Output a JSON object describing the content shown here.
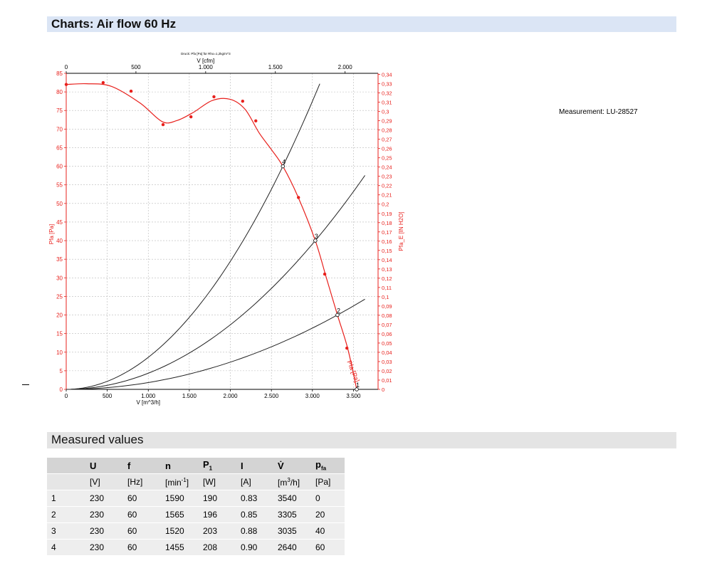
{
  "header": {
    "title": "Charts: Air flow 60 Hz"
  },
  "measurement": "Measurement: LU-28527",
  "chart_data": {
    "type": "line",
    "title": "",
    "subtitle": "Druck: Pfa [Pa] für Rho=1,2kg/m^3",
    "xlabel": "V [m^3/h]",
    "x2label": "V [cfm]",
    "ylabel": "Pfa [Pa]",
    "y2label": "Pfa_E [IN H2O]",
    "xlim": [
      0,
      3800
    ],
    "ylim": [
      0,
      85
    ],
    "x2lim": [
      0,
      2236.5
    ],
    "y2lim": [
      0,
      0.3412
    ],
    "x_ticks": [
      0,
      500,
      1000,
      1500,
      2000,
      2500,
      3000,
      3500
    ],
    "x_tick_labels": [
      "0",
      "500",
      "1.000",
      "1.500",
      "2.000",
      "2.500",
      "3.000",
      "3.500"
    ],
    "x2_ticks": [
      0,
      500,
      1000,
      1500,
      2000
    ],
    "x2_tick_labels": [
      "0",
      "500",
      "1.000",
      "1.500",
      "2.000"
    ],
    "y_ticks": [
      0,
      5,
      10,
      15,
      20,
      25,
      30,
      35,
      40,
      45,
      50,
      55,
      60,
      65,
      70,
      75,
      80,
      85
    ],
    "y2_ticks": [
      0,
      0.01,
      0.02,
      0.03,
      0.04,
      0.05,
      0.06,
      0.07,
      0.08,
      0.09,
      0.1,
      0.11,
      0.12,
      0.13,
      0.14,
      0.15,
      0.16,
      0.17,
      0.18,
      0.19,
      0.2,
      0.21,
      0.22,
      0.23,
      0.24,
      0.25,
      0.26,
      0.27,
      0.28,
      0.29,
      0.3,
      0.31,
      0.32,
      0.33,
      0.34
    ],
    "y2_tick_labels": [
      "0",
      "0,01",
      "0,02",
      "0,03",
      "0,04",
      "0,05",
      "0,06",
      "0,07",
      "0,08",
      "0,09",
      "0,1",
      "0,11",
      "0,12",
      "0,13",
      "0,14",
      "0,15",
      "0,16",
      "0,17",
      "0,18",
      "0,19",
      "0,2",
      "0,21",
      "0,22",
      "0,23",
      "0,24",
      "0,25",
      "0,26",
      "0,27",
      "0,28",
      "0,29",
      "0,3",
      "0,31",
      "0,32",
      "0,33",
      "0,34"
    ],
    "grid": true,
    "fan_curve": {
      "label": "Pfa [Pa]",
      "color": "#e8201c",
      "x": [
        0,
        250,
        550,
        900,
        1170,
        1350,
        1550,
        1780,
        2000,
        2180,
        2350,
        2500,
        2640,
        2820,
        3035,
        3170,
        3305,
        3430,
        3540
      ],
      "y": [
        82,
        82.2,
        81.5,
        77,
        72,
        72.3,
        74.5,
        77.7,
        78,
        75.3,
        69,
        64.5,
        60,
        52,
        40,
        30,
        20,
        11,
        0
      ],
      "markers_x": [
        0,
        450,
        790,
        1180,
        1520,
        1800,
        2150,
        2310,
        2830,
        3150,
        3420
      ],
      "markers_y": [
        82,
        82.5,
        80.2,
        71.2,
        73.3,
        78.7,
        77.5,
        72.2,
        51.6,
        31,
        11.1
      ]
    },
    "system_curves": [
      {
        "k_over": 2640,
        "at": 60,
        "x_max": 3090
      },
      {
        "k_over": 3035,
        "at": 40,
        "x_max": 3640
      },
      {
        "k_over": 3305,
        "at": 20,
        "x_max": 3640
      }
    ],
    "operating_points": [
      {
        "label": "1",
        "x": 3540,
        "y": 0
      },
      {
        "label": "2",
        "x": 3305,
        "y": 20
      },
      {
        "label": "3",
        "x": 3035,
        "y": 40
      },
      {
        "label": "4",
        "x": 2640,
        "y": 60
      }
    ],
    "curve_label": "Pfa [Pa]"
  },
  "measured": {
    "title": "Measured values",
    "headers": [
      "",
      "U",
      "f",
      "n",
      "P",
      "I",
      "V̇",
      "p"
    ],
    "header_subs": [
      "",
      "",
      "",
      "",
      "1",
      "",
      "",
      "fa"
    ],
    "units": [
      "",
      "[V]",
      "[Hz]",
      "[min",
      "[W]",
      "[A]",
      "[m",
      "[Pa]"
    ],
    "unit_sups": [
      "",
      "",
      "",
      "-1",
      "",
      "",
      "3",
      ""
    ],
    "unit_tails": [
      "",
      "",
      "",
      "]",
      "",
      "",
      "/h]",
      ""
    ],
    "rows": [
      [
        "1",
        "230",
        "60",
        "1590",
        "190",
        "0.83",
        "3540",
        "0"
      ],
      [
        "2",
        "230",
        "60",
        "1565",
        "196",
        "0.85",
        "3305",
        "20"
      ],
      [
        "3",
        "230",
        "60",
        "1520",
        "203",
        "0.88",
        "3035",
        "40"
      ],
      [
        "4",
        "230",
        "60",
        "1455",
        "208",
        "0.90",
        "2640",
        "60"
      ]
    ]
  }
}
